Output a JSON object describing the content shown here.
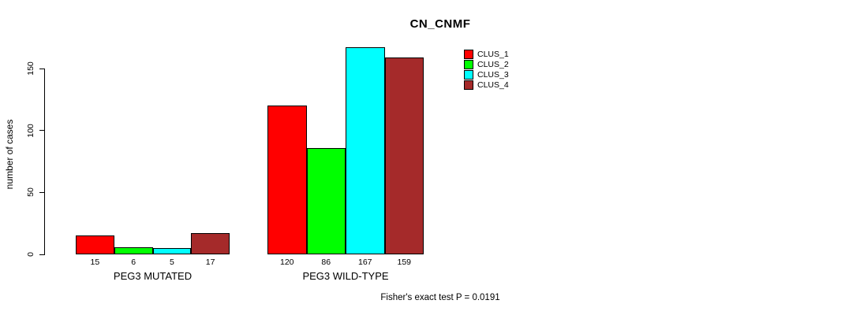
{
  "chart_data": {
    "type": "bar",
    "title": "CN_CNMF",
    "ylabel": "number of cases",
    "xlabel": "",
    "yticks": [
      0,
      50,
      100,
      150
    ],
    "ylim": [
      0,
      167
    ],
    "grid": false,
    "legend_position": "inside-top-right",
    "categories": [
      "PEG3 MUTATED",
      "PEG3 WILD-TYPE"
    ],
    "series": [
      {
        "name": "CLUS_1",
        "color": "#ff0000",
        "values": [
          15,
          120
        ]
      },
      {
        "name": "CLUS_2",
        "color": "#00ff00",
        "values": [
          6,
          86
        ]
      },
      {
        "name": "CLUS_3",
        "color": "#00ffff",
        "values": [
          5,
          167
        ]
      },
      {
        "name": "CLUS_4",
        "color": "#a52a2a",
        "values": [
          17,
          159
        ]
      }
    ],
    "annotation": "Fisher's exact test P = 0.0191"
  }
}
